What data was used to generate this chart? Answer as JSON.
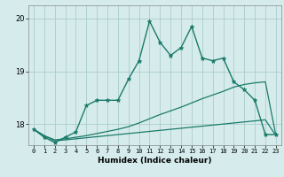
{
  "xlabel": "Humidex (Indice chaleur)",
  "background_color": "#d6ecec",
  "grid_color": "#aacccc",
  "line_color": "#1a7a6a",
  "xlim": [
    -0.5,
    23.5
  ],
  "ylim": [
    17.6,
    20.25
  ],
  "yticks": [
    18,
    19,
    20
  ],
  "xticks": [
    0,
    1,
    2,
    3,
    4,
    5,
    6,
    7,
    8,
    9,
    10,
    11,
    12,
    13,
    14,
    15,
    16,
    17,
    18,
    19,
    20,
    21,
    22,
    23
  ],
  "series1_x": [
    0,
    1,
    2,
    3,
    4,
    5,
    6,
    7,
    8,
    9,
    10,
    11,
    12,
    13,
    14,
    15,
    16,
    17,
    18,
    19,
    20,
    21,
    22,
    23
  ],
  "series1_y": [
    17.9,
    17.75,
    17.65,
    17.75,
    17.85,
    18.35,
    18.45,
    18.45,
    18.45,
    18.85,
    19.2,
    19.95,
    19.55,
    19.3,
    19.45,
    19.85,
    19.25,
    19.2,
    19.25,
    18.8,
    18.65,
    18.45,
    17.8,
    17.8
  ],
  "series2_x": [
    0,
    1,
    2,
    3,
    4,
    5,
    6,
    7,
    8,
    9,
    10,
    11,
    12,
    13,
    14,
    15,
    16,
    17,
    18,
    19,
    20,
    21,
    22,
    23
  ],
  "series2_y": [
    17.9,
    17.78,
    17.7,
    17.72,
    17.75,
    17.78,
    17.82,
    17.86,
    17.9,
    17.95,
    18.02,
    18.1,
    18.18,
    18.25,
    18.32,
    18.4,
    18.48,
    18.55,
    18.62,
    18.7,
    18.75,
    18.78,
    18.8,
    17.78
  ],
  "series3_x": [
    0,
    1,
    2,
    3,
    4,
    5,
    6,
    7,
    8,
    9,
    10,
    11,
    12,
    13,
    14,
    15,
    16,
    17,
    18,
    19,
    20,
    21,
    22,
    23
  ],
  "series3_y": [
    17.9,
    17.78,
    17.68,
    17.7,
    17.72,
    17.74,
    17.76,
    17.78,
    17.8,
    17.82,
    17.84,
    17.86,
    17.88,
    17.9,
    17.92,
    17.94,
    17.96,
    17.98,
    18.0,
    18.02,
    18.04,
    18.06,
    18.08,
    17.78
  ]
}
